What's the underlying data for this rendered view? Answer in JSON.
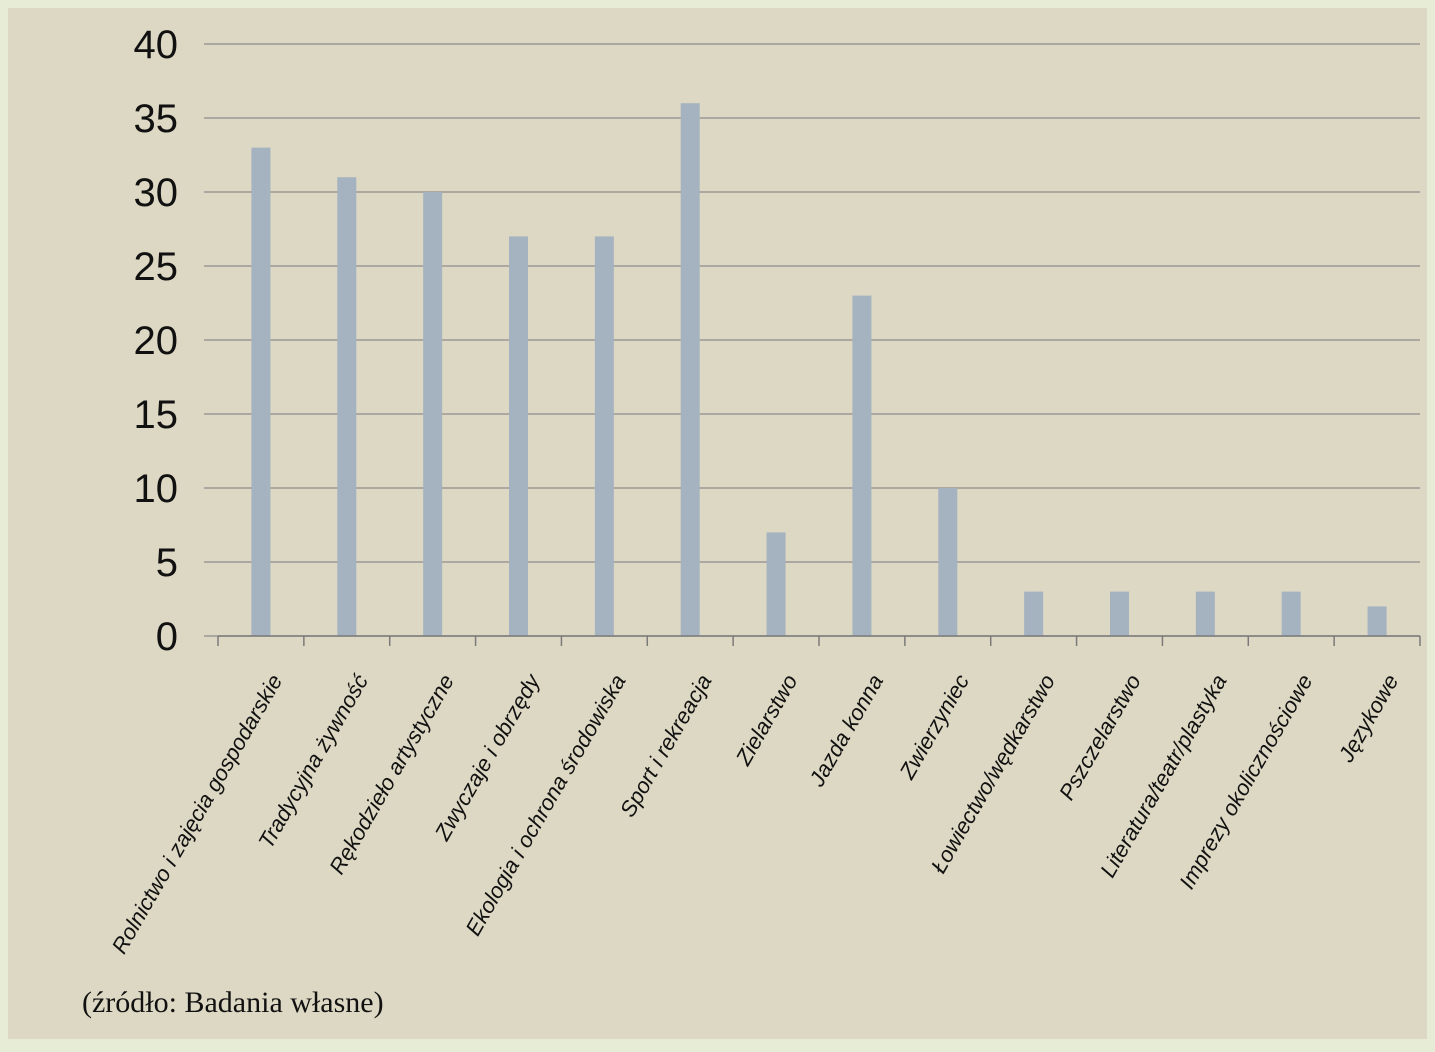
{
  "chart_data": {
    "type": "bar",
    "categories": [
      "Rolnictwo i zajęcia gospodarskie",
      "Tradycyjna żywność",
      "Rękodzieło artystyczne",
      "Zwyczaje i obrzędy",
      "Ekologia i ochrona środowiska",
      "Sport i rekreacja",
      "Zielarstwo",
      "Jazda konna",
      "Zwierzyniec",
      "Łowiectwo/wędkarstwo",
      "Pszczelarstwo",
      "Literatura/teatr/plastyka",
      "Imprezy okolicznościowe",
      "Językowe"
    ],
    "values": [
      33,
      31,
      30,
      27,
      27,
      36,
      7,
      23,
      10,
      3,
      3,
      3,
      3,
      2
    ],
    "ylim": [
      0,
      40
    ],
    "yticks": [
      "0",
      "5",
      "10",
      "15",
      "20",
      "25",
      "30",
      "35",
      "40"
    ],
    "grid": true,
    "legend": "none",
    "title": "",
    "xlabel": "",
    "ylabel": "",
    "colors": {
      "bar": "#a5b3c0",
      "plot_background": "#ddd8c3",
      "gridline": "#8c8c8c",
      "page_background": "#e6ecd6"
    }
  },
  "source_note": "(źródło: Badania własne)"
}
